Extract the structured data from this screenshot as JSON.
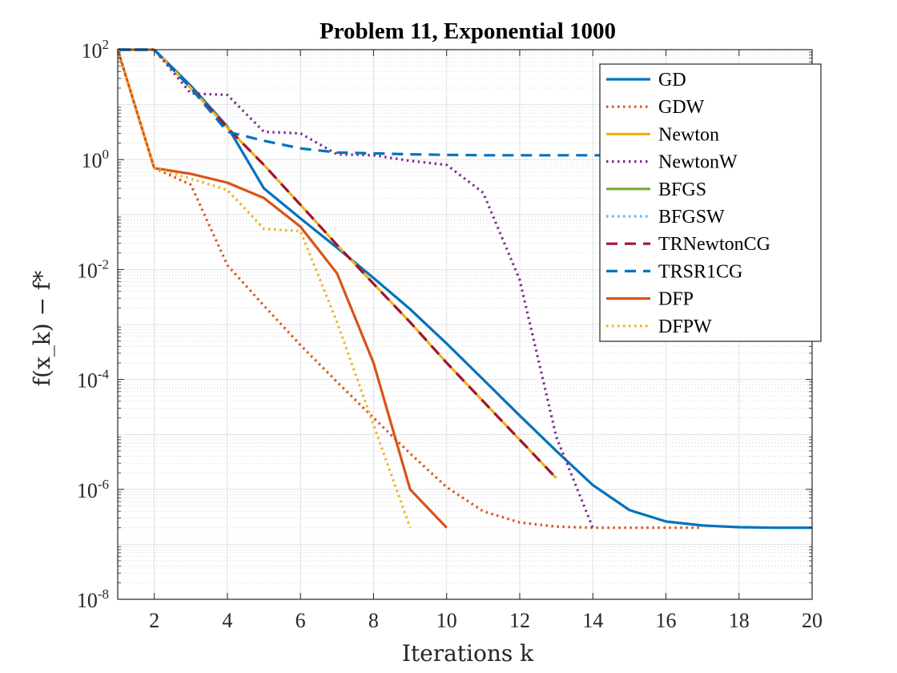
{
  "chart_data": {
    "type": "line",
    "title": "Problem 11, Exponential 1000",
    "xlabel": "Iterations k",
    "ylabel": "f(x_k) − f*",
    "xlim": [
      1,
      20
    ],
    "ylim_log10": [
      -8,
      2
    ],
    "yscale": "log",
    "grid": true,
    "minor_grid": true,
    "legend_position": "top-right",
    "x_ticks": [
      2,
      4,
      6,
      8,
      10,
      12,
      14,
      16,
      18,
      20
    ],
    "y_tick_exponents": [
      2,
      0,
      -2,
      -4,
      -6,
      -8
    ],
    "y_tick_base": "10",
    "series": [
      {
        "name": "GD",
        "color": "#0072BD",
        "dash": "solid",
        "x": [
          1,
          2,
          3,
          4,
          5,
          6,
          7,
          8,
          9,
          10,
          11,
          12,
          13,
          14,
          15,
          16,
          17,
          18,
          19,
          20
        ],
        "y": [
          100,
          100,
          22,
          4,
          0.3,
          0.085,
          0.025,
          0.007,
          0.0019,
          0.00045,
          0.0001,
          2.2e-05,
          5e-06,
          1.2e-06,
          4.2e-07,
          2.6e-07,
          2.2e-07,
          2.05e-07,
          2e-07,
          2e-07
        ]
      },
      {
        "name": "GDW",
        "color": "#D95319",
        "dash": "dot",
        "x": [
          1,
          2,
          3,
          4,
          5,
          6,
          7,
          8,
          9,
          10,
          11,
          12,
          13,
          14,
          15,
          16,
          17
        ],
        "y": [
          100,
          0.7,
          0.35,
          0.012,
          0.0022,
          0.00042,
          9e-05,
          2e-05,
          4.5e-06,
          1.1e-06,
          4e-07,
          2.5e-07,
          2.1e-07,
          2e-07,
          2e-07,
          2e-07,
          2e-07
        ]
      },
      {
        "name": "Newton",
        "color": "#EDB120",
        "dash": "solid",
        "x": [
          1,
          2,
          3,
          4,
          5,
          6,
          7,
          8,
          9,
          10,
          11,
          12,
          13
        ],
        "y": [
          100,
          100,
          20,
          3.8,
          0.8,
          0.15,
          0.028,
          0.0055,
          0.0011,
          0.0002,
          4e-05,
          8e-06,
          1.6e-06
        ]
      },
      {
        "name": "NewtonW",
        "color": "#7E2F8E",
        "dash": "dot",
        "x": [
          1,
          2,
          3,
          4,
          5,
          6,
          7,
          8,
          9,
          10,
          11,
          12,
          13,
          14
        ],
        "y": [
          100,
          100,
          16,
          15,
          3.2,
          3.0,
          1.25,
          1.2,
          0.95,
          0.8,
          0.25,
          0.0065,
          9e-06,
          2e-07
        ]
      },
      {
        "name": "BFGS",
        "color": "#77AC30",
        "dash": "solid",
        "x": [],
        "y": []
      },
      {
        "name": "BFGSW",
        "color": "#4DBEEE",
        "dash": "dot",
        "x": [],
        "y": []
      },
      {
        "name": "TRNewtonCG",
        "color": "#A2142F",
        "dash": "dash",
        "x": [
          1,
          2,
          3,
          4,
          5,
          6,
          7,
          8,
          9,
          10,
          11,
          12,
          13
        ],
        "y": [
          100,
          100,
          20,
          3.8,
          0.8,
          0.15,
          0.028,
          0.0055,
          0.0011,
          0.0002,
          4e-05,
          8e-06,
          1.6e-06
        ]
      },
      {
        "name": "TRSR1CG",
        "color": "#0072BD",
        "dash": "dash",
        "x": [
          1,
          2,
          3,
          4,
          5,
          6,
          7,
          8,
          9,
          10,
          11,
          12,
          13,
          14,
          15
        ],
        "y": [
          100,
          100,
          20,
          3.2,
          2.2,
          1.6,
          1.35,
          1.3,
          1.25,
          1.22,
          1.2,
          1.2,
          1.2,
          1.2,
          1.2
        ]
      },
      {
        "name": "DFP",
        "color": "#D95319",
        "dash": "solid",
        "x": [
          1,
          2,
          3,
          4,
          5,
          6,
          7,
          8,
          9,
          10
        ],
        "y": [
          100,
          0.7,
          0.55,
          0.38,
          0.2,
          0.06,
          0.0085,
          0.0002,
          1e-06,
          2e-07
        ]
      },
      {
        "name": "DFPW",
        "color": "#EDB120",
        "dash": "dot",
        "x": [
          1,
          2,
          3,
          4,
          5,
          6,
          7,
          8,
          9
        ],
        "y": [
          100,
          0.7,
          0.45,
          0.28,
          0.055,
          0.05,
          0.0011,
          1.5e-05,
          2e-07
        ]
      }
    ]
  }
}
